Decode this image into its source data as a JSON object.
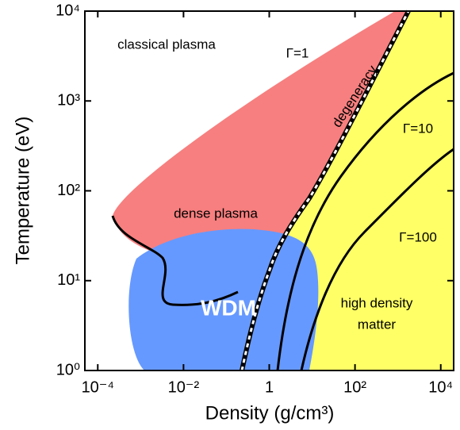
{
  "chart_data": {
    "type": "phase-diagram",
    "xlabel": "Density (g/cm³)",
    "ylabel": "Temperature (eV)",
    "xlog": true,
    "ylog": true,
    "xlim": [
      5e-05,
      20000
    ],
    "ylim": [
      1,
      10000
    ],
    "xticks": [
      {
        "value": 0.0001,
        "label": "10⁻⁴"
      },
      {
        "value": 0.01,
        "label": "10⁻²"
      },
      1,
      {
        "value": 100,
        "label": "10²"
      },
      {
        "value": 10000,
        "label": "10⁴"
      }
    ],
    "yticks": [
      {
        "value": 1,
        "label": "10⁰"
      },
      {
        "value": 10,
        "label": "10¹"
      },
      {
        "value": 100,
        "label": "10²"
      },
      {
        "value": 1000,
        "label": "10³"
      },
      {
        "value": 10000,
        "label": "10⁴"
      }
    ],
    "annotations": [
      "classical plasma",
      "Γ=1",
      "degeneracy",
      "Γ=10",
      "Γ=100",
      "dense plasma",
      "WDM",
      "high density",
      "matter"
    ]
  }
}
